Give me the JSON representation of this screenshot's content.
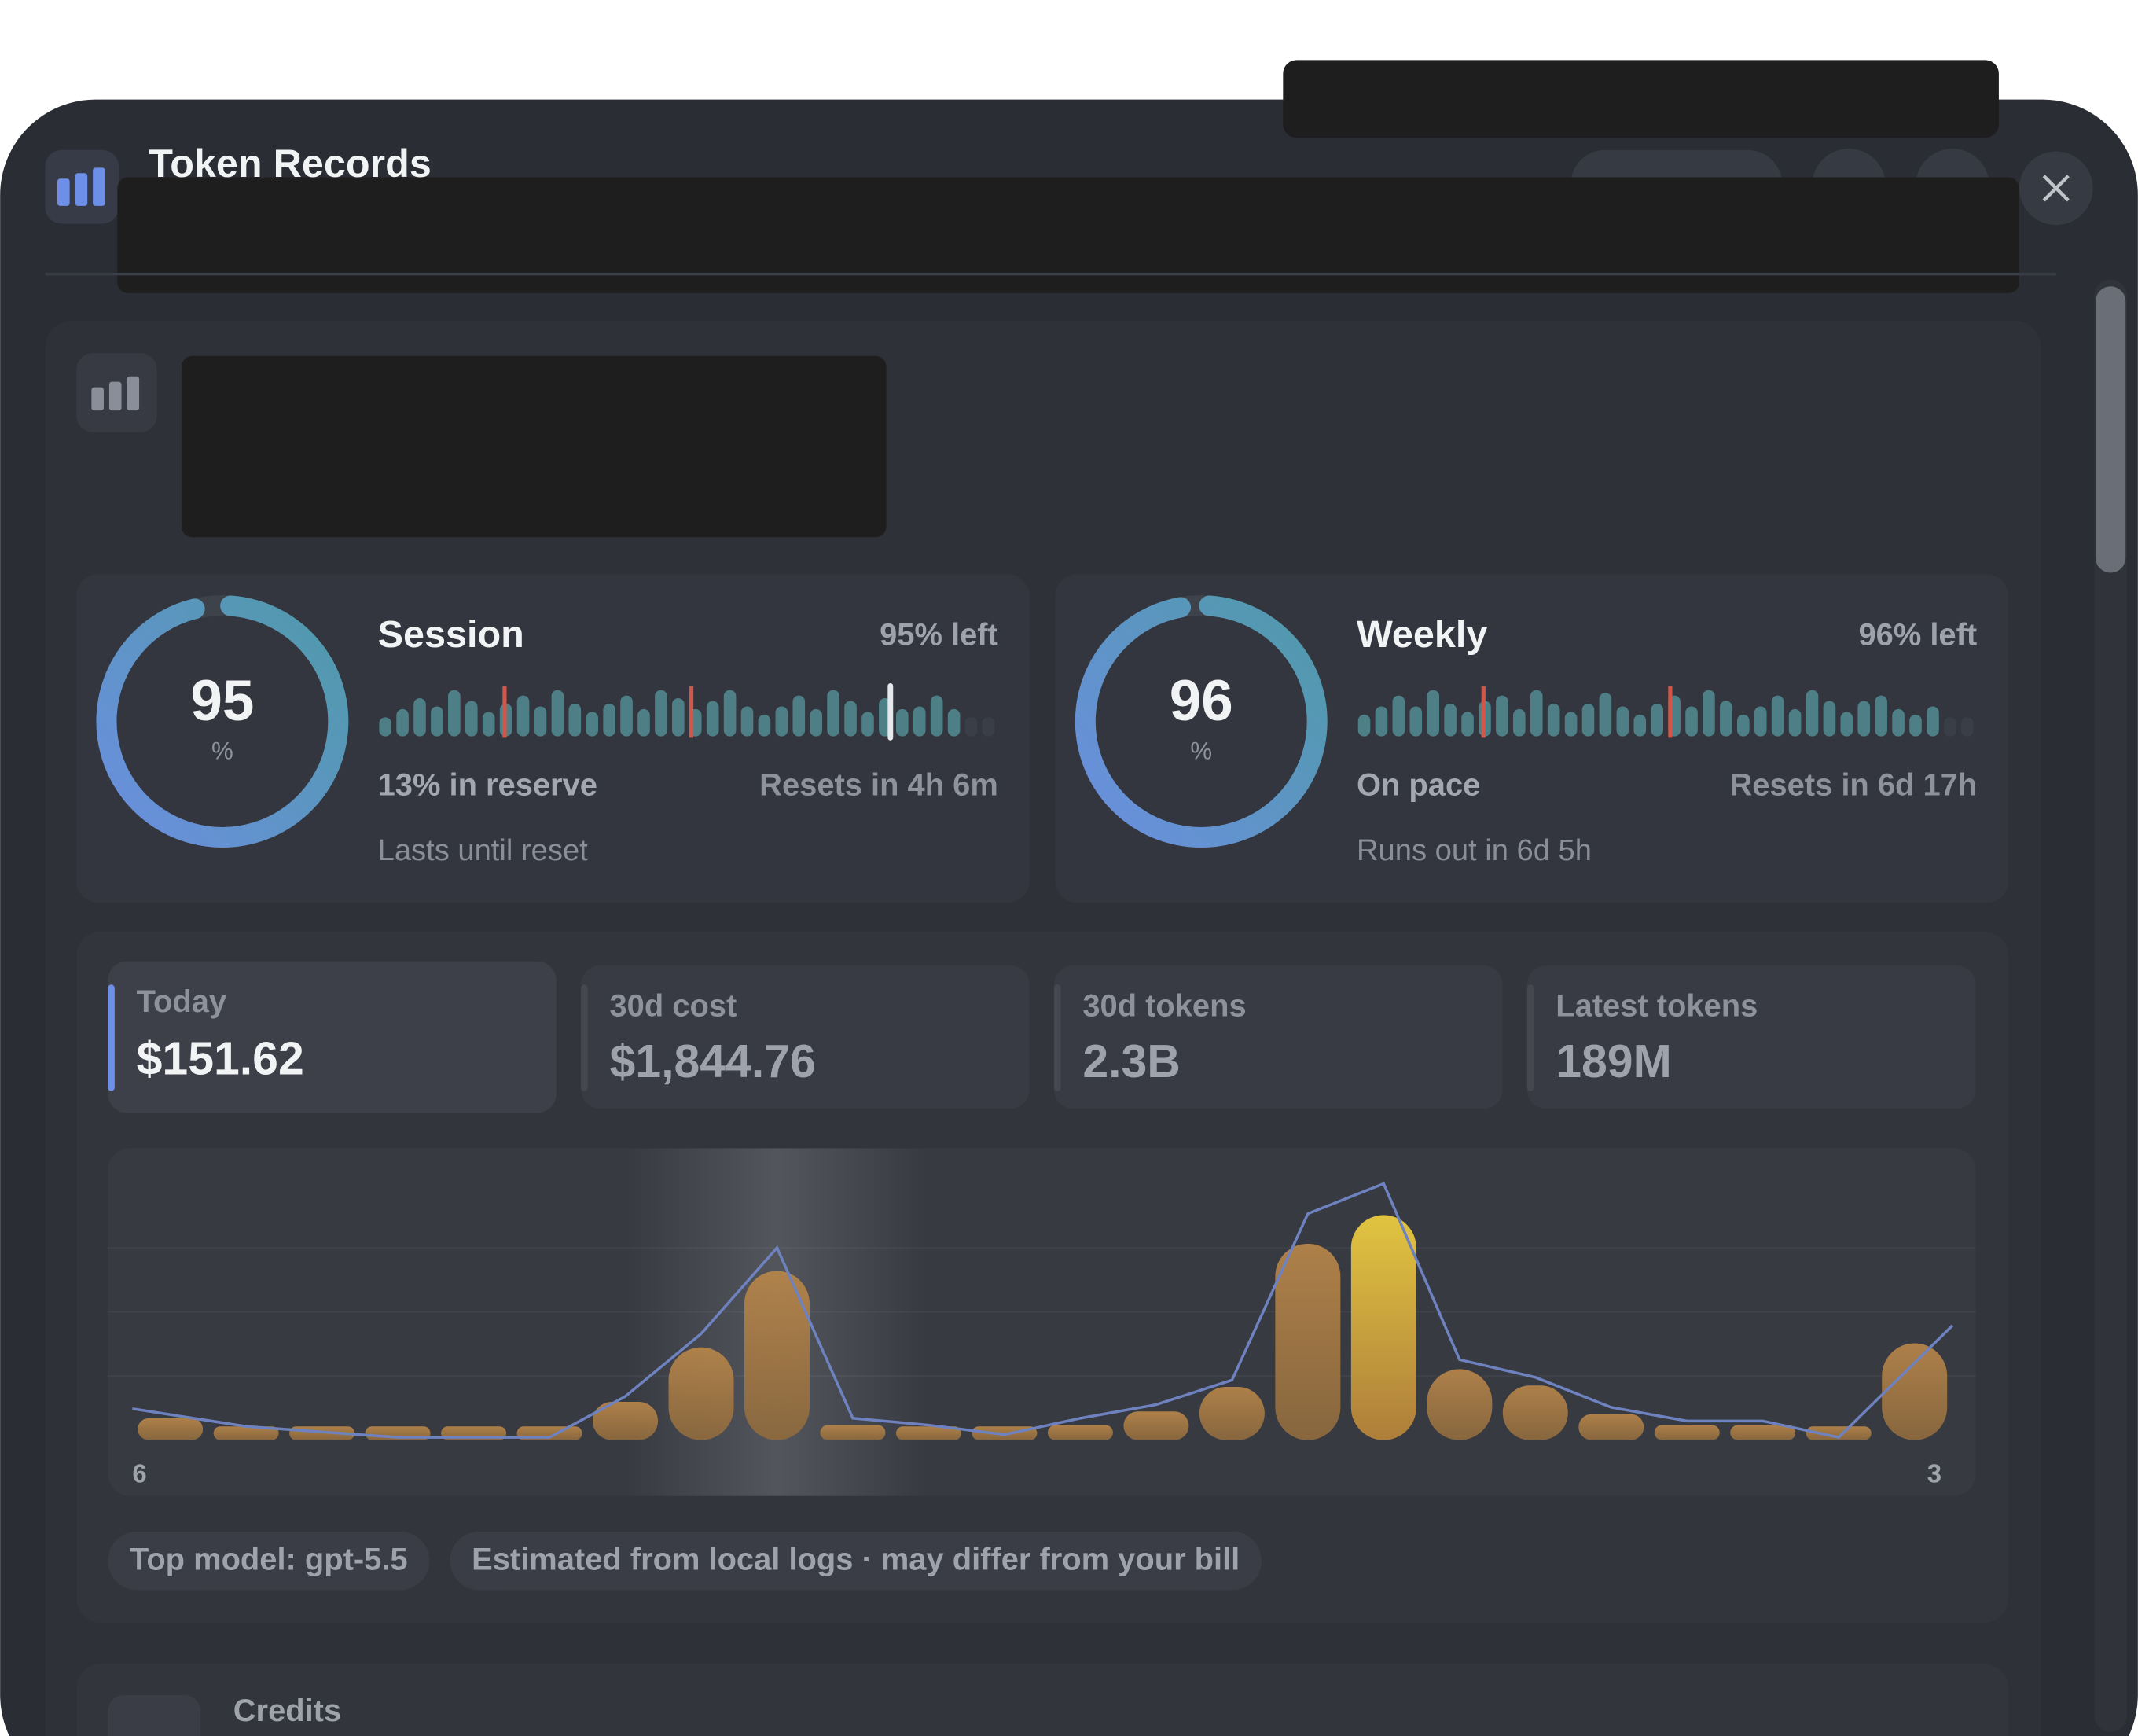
{
  "app": {
    "title": "Token Records"
  },
  "session": {
    "label": "Session",
    "percent": 95,
    "unit": "%",
    "left": "95% left",
    "status": "13% in reserve",
    "resets": "Resets in 4h 6m",
    "note": "Lasts until reset",
    "bars": [
      14,
      20,
      28,
      22,
      34,
      26,
      18,
      24,
      30,
      22,
      34,
      24,
      18,
      24,
      30,
      20,
      34,
      28,
      20,
      26,
      34,
      22,
      16,
      22,
      30,
      20,
      34,
      26,
      18,
      28,
      20,
      22,
      30,
      20,
      null,
      null
    ]
  },
  "weekly": {
    "label": "Weekly",
    "percent": 96,
    "unit": "%",
    "left": "96% left",
    "status": "On pace",
    "resets": "Resets in 6d 17h",
    "note": "Runs out in 6d 5h",
    "bars": [
      16,
      22,
      30,
      22,
      34,
      24,
      18,
      26,
      30,
      20,
      34,
      24,
      18,
      24,
      32,
      22,
      16,
      24,
      30,
      22,
      34,
      26,
      16,
      22,
      30,
      20,
      34,
      26,
      18,
      26,
      30,
      20,
      16,
      22,
      null,
      null
    ]
  },
  "stats": [
    {
      "label": "Today",
      "value": "$151.62"
    },
    {
      "label": "30d cost",
      "value": "$1,844.76"
    },
    {
      "label": "30d tokens",
      "value": "2.3B"
    },
    {
      "label": "Latest tokens",
      "value": "189M"
    }
  ],
  "chart_data": {
    "type": "bar",
    "categories": [
      "6",
      null,
      null,
      null,
      null,
      null,
      null,
      null,
      null,
      null,
      null,
      null,
      null,
      null,
      null,
      null,
      null,
      null,
      null,
      null,
      null,
      null,
      null,
      "3"
    ],
    "values": [
      16,
      6,
      6,
      6,
      6,
      6,
      28,
      68,
      124,
      11,
      9,
      8,
      11,
      21,
      39,
      144,
      165,
      52,
      40,
      19,
      11,
      11,
      8,
      71
    ],
    "line": [
      23,
      10,
      6,
      2,
      2,
      2,
      32,
      78,
      141,
      16,
      11,
      4,
      16,
      26,
      44,
      166,
      188,
      59,
      46,
      24,
      14,
      14,
      2,
      84
    ],
    "color": "#b07f45",
    "peak_color": "#e8c53a",
    "line_color": "#6f82c0"
  },
  "chips": [
    "Top model: gpt-5.5",
    "Estimated from local logs · may differ from your bill"
  ],
  "credits": {
    "title": "Credits"
  }
}
